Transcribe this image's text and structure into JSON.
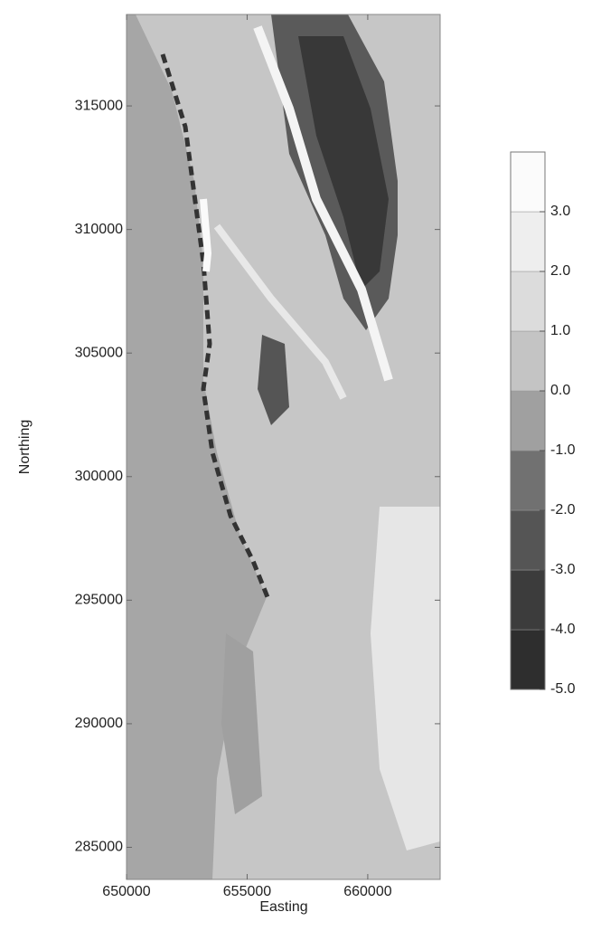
{
  "chart_data": {
    "type": "contour",
    "xlabel": "Easting",
    "ylabel": "Northing",
    "xlim": [
      650000,
      663000
    ],
    "xticks": [
      650000,
      655000,
      660000
    ],
    "ylim": [
      283700,
      318700
    ],
    "yticks": [
      285000,
      290000,
      295000,
      300000,
      305000,
      310000,
      315000
    ],
    "colorbar": {
      "levels": [
        -5,
        -4,
        -3,
        -2,
        -1,
        0,
        1,
        2,
        3,
        4
      ],
      "colors": [
        "#2e2e2e",
        "#3c3c3c",
        "#555555",
        "#717171",
        "#a0a0a0",
        "#c4c4c4",
        "#dcdcdc",
        "#eeeeee",
        "#fbfbfb"
      ],
      "ticks": [
        {
          "value": -5,
          "label": "-5.0"
        },
        {
          "value": -4,
          "label": "-4.0"
        },
        {
          "value": -3,
          "label": "-3.0"
        },
        {
          "value": -2,
          "label": "-2.0"
        },
        {
          "value": -1,
          "label": "-1.0"
        },
        {
          "value": 0,
          "label": "0.0"
        },
        {
          "value": 1,
          "label": "1.0"
        },
        {
          "value": 2,
          "label": "2.0"
        },
        {
          "value": 3,
          "label": "3.0"
        }
      ]
    }
  }
}
